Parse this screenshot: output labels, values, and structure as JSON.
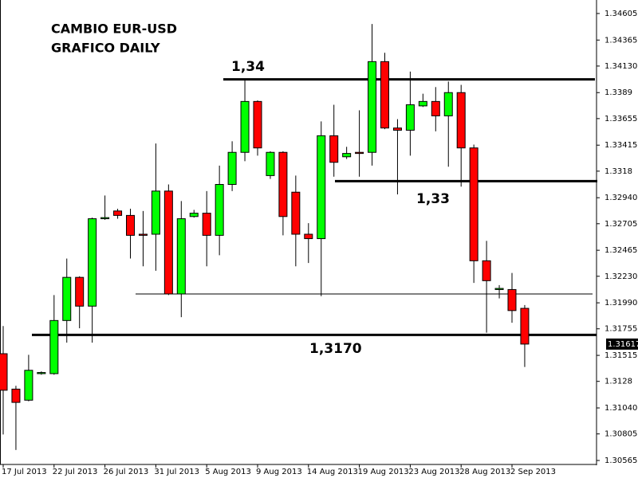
{
  "chart_data": {
    "type": "candlestick",
    "title": "CAMBIO EUR-USD",
    "subtitle": "GRAFICO DAILY",
    "categories": [
      "17 Jul 2013",
      null,
      null,
      null,
      "22 Jul 2013",
      null,
      null,
      null,
      "26 Jul 2013",
      null,
      null,
      null,
      "31 Jul 2013",
      null,
      null,
      null,
      "5 Aug 2013",
      null,
      null,
      null,
      "9 Aug 2013",
      null,
      null,
      null,
      "14 Aug 2013",
      null,
      null,
      null,
      "19 Aug 2013",
      null,
      null,
      null,
      "23 Aug 2013",
      null,
      null,
      null,
      "28 Aug 2013",
      null,
      null,
      null,
      "2 Sep 2013",
      null
    ],
    "open": [
      1.3153,
      1.3121,
      1.3111,
      1.3135,
      1.3135,
      1.3183,
      1.3222,
      1.3196,
      1.3275,
      1.3282,
      1.3278,
      1.3261,
      1.3261,
      1.33,
      1.3207,
      1.3277,
      1.328,
      1.326,
      1.3306,
      1.3335,
      1.3381,
      1.3314,
      1.3335,
      1.3299,
      1.3261,
      1.3257,
      1.335,
      1.3331,
      1.3335,
      1.3335,
      1.3417,
      1.3357,
      1.3355,
      1.3377,
      1.3381,
      1.3368,
      1.3389,
      1.3339,
      1.3237,
      1.3211,
      1.3211,
      1.3194
    ],
    "high": [
      1.3178,
      1.3124,
      1.3152,
      1.3137,
      1.3206,
      1.3239,
      1.3223,
      1.3276,
      1.3296,
      1.3284,
      1.3284,
      1.3282,
      1.3343,
      1.3306,
      1.3291,
      1.3283,
      1.33,
      1.3323,
      1.3345,
      1.34,
      1.3382,
      1.3336,
      1.3336,
      1.3314,
      1.3271,
      1.3363,
      1.3378,
      1.334,
      1.3373,
      1.3451,
      1.3425,
      1.3365,
      1.3408,
      1.3388,
      1.3394,
      1.3399,
      1.3396,
      1.3342,
      1.3255,
      1.3215,
      1.3226,
      1.3197
    ],
    "low": [
      1.308,
      1.3066,
      1.311,
      1.3134,
      1.3134,
      1.3163,
      1.3176,
      1.3163,
      1.3274,
      1.3275,
      1.3239,
      1.3232,
      1.3228,
      1.3206,
      1.3186,
      1.3276,
      1.3232,
      1.3242,
      1.33,
      1.3327,
      1.3332,
      1.3311,
      1.326,
      1.3232,
      1.3235,
      1.3205,
      1.3313,
      1.3329,
      1.3313,
      1.3323,
      1.3356,
      1.3297,
      1.3332,
      1.3376,
      1.3354,
      1.3322,
      1.3304,
      1.3217,
      1.3172,
      1.3203,
      1.3181,
      1.3141
    ],
    "close": [
      1.312,
      1.3109,
      1.3138,
      1.3136,
      1.3183,
      1.3222,
      1.3196,
      1.3275,
      1.3276,
      1.3278,
      1.326,
      1.326,
      1.33,
      1.3207,
      1.3275,
      1.328,
      1.326,
      1.3306,
      1.3335,
      1.3381,
      1.3339,
      1.3335,
      1.3277,
      1.3261,
      1.3257,
      1.335,
      1.3326,
      1.3334,
      1.3334,
      1.3417,
      1.3357,
      1.3355,
      1.3378,
      1.3381,
      1.3368,
      1.3389,
      1.3339,
      1.3237,
      1.3219,
      1.3212,
      1.3192,
      1.31617
    ],
    "up_color": "#00ff00",
    "down_color": "#ff0000",
    "ylim": [
      1.30529,
      1.34727
    ],
    "yticks": [
      1.34605,
      1.34365,
      {
        "value": 1.3413,
        "label": "1.34130"
      },
      1.3389,
      1.33655,
      1.33415,
      1.3318,
      {
        "value": 1.3294,
        "label": "1.32940"
      },
      1.32705,
      1.32465,
      {
        "value": 1.3223,
        "label": "1.32230"
      },
      {
        "value": 1.3199,
        "label": "1.31990"
      },
      1.31755,
      1.31515,
      1.3128,
      {
        "value": 1.3104,
        "label": "1.31040"
      },
      1.30805,
      1.30565
    ],
    "hlines": [
      {
        "value": 1.3401,
        "label": "1,34"
      },
      {
        "value": 1.3309,
        "label": "1,33"
      },
      {
        "value": 1.3207
      },
      {
        "value": 1.317,
        "label": "1,3170"
      }
    ],
    "last_price": 1.31617
  }
}
